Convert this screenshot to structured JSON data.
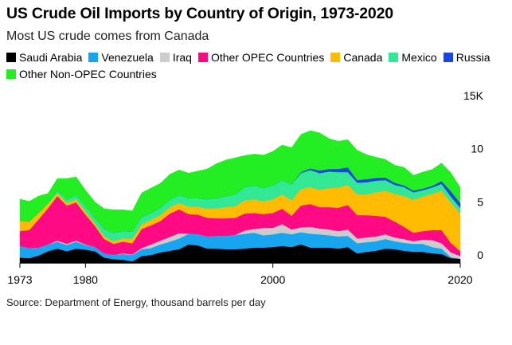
{
  "title": "US Crude Oil Imports by Country of Origin, 1973-2020",
  "subtitle": "Most US crude comes from Canada",
  "source": "Source: Department of Energy, thousand barrels per day",
  "chart_data": {
    "type": "area",
    "stacked": true,
    "x": [
      1973,
      1974,
      1975,
      1976,
      1977,
      1978,
      1979,
      1980,
      1981,
      1982,
      1983,
      1984,
      1985,
      1986,
      1987,
      1988,
      1989,
      1990,
      1991,
      1992,
      1993,
      1994,
      1995,
      1996,
      1997,
      1998,
      1999,
      2000,
      2001,
      2002,
      2003,
      2004,
      2005,
      2006,
      2007,
      2008,
      2009,
      2010,
      2011,
      2012,
      2013,
      2014,
      2015,
      2016,
      2017,
      2018,
      2019,
      2020
    ],
    "x_ticks": [
      "1973",
      "1980",
      "2000",
      "2020"
    ],
    "y_ticks": [
      "0",
      "5",
      "10",
      "15K"
    ],
    "ylim": [
      0,
      15000
    ],
    "series": [
      {
        "name": "Saudi Arabia",
        "color": "#000000",
        "values": [
          500,
          450,
          700,
          1100,
          1350,
          1100,
          1350,
          1250,
          1100,
          500,
          350,
          300,
          150,
          650,
          750,
          1000,
          1150,
          1300,
          1750,
          1650,
          1350,
          1350,
          1300,
          1300,
          1350,
          1450,
          1450,
          1500,
          1600,
          1500,
          1750,
          1450,
          1450,
          1450,
          1350,
          1500,
          900,
          1050,
          1150,
          1350,
          1300,
          1150,
          1050,
          1050,
          900,
          850,
          450,
          400
        ]
      },
      {
        "name": "Venezuela",
        "color": "#17a5f0",
        "values": [
          1100,
          950,
          750,
          650,
          650,
          600,
          650,
          450,
          400,
          400,
          400,
          550,
          600,
          650,
          650,
          750,
          850,
          1000,
          1000,
          1050,
          1150,
          1200,
          1250,
          1350,
          1400,
          1400,
          1150,
          1200,
          1250,
          1200,
          1150,
          1300,
          1250,
          1150,
          1150,
          1050,
          950,
          900,
          900,
          900,
          750,
          750,
          750,
          750,
          600,
          500,
          100,
          0
        ]
      },
      {
        "name": "Iraq",
        "color": "#cccccc",
        "values": [
          0,
          0,
          0,
          0,
          100,
          100,
          100,
          50,
          0,
          0,
          0,
          50,
          50,
          100,
          350,
          350,
          450,
          500,
          0,
          0,
          0,
          0,
          0,
          0,
          300,
          350,
          700,
          600,
          800,
          450,
          450,
          650,
          550,
          550,
          500,
          600,
          450,
          450,
          450,
          450,
          350,
          350,
          250,
          400,
          650,
          500,
          450,
          250
        ]
      },
      {
        "name": "Other OPEC Countries",
        "color": "#ff0a85",
        "values": [
          1400,
          1700,
          2650,
          3400,
          4200,
          3600,
          3600,
          2800,
          2000,
          1350,
          1050,
          1100,
          1050,
          1800,
          1800,
          1850,
          2200,
          2250,
          1850,
          1850,
          1750,
          1650,
          1650,
          1600,
          1600,
          1500,
          1300,
          1400,
          1450,
          1300,
          2050,
          2150,
          2000,
          2100,
          2200,
          2300,
          2200,
          2100,
          1950,
          1650,
          1500,
          1150,
          800,
          800,
          950,
          1250,
          900,
          450
        ]
      },
      {
        "name": "Canada",
        "color": "#ffbb00",
        "values": [
          1000,
          800,
          600,
          400,
          300,
          250,
          300,
          300,
          250,
          250,
          250,
          300,
          400,
          450,
          500,
          550,
          600,
          600,
          700,
          750,
          850,
          950,
          1050,
          1100,
          1250,
          1300,
          1200,
          1300,
          1350,
          1450,
          1550,
          1600,
          1650,
          1800,
          1900,
          1900,
          1950,
          1950,
          2200,
          2450,
          2600,
          2900,
          3100,
          3250,
          3400,
          3700,
          3800,
          3550
        ]
      },
      {
        "name": "Mexico",
        "color": "#32e895",
        "values": [
          0,
          0,
          50,
          100,
          200,
          300,
          400,
          500,
          500,
          700,
          800,
          700,
          700,
          700,
          650,
          700,
          700,
          750,
          800,
          800,
          900,
          950,
          1050,
          1100,
          1250,
          1300,
          1250,
          1300,
          1350,
          1500,
          1500,
          1600,
          1550,
          1550,
          1450,
          1200,
          1100,
          1150,
          1100,
          1000,
          850,
          850,
          700,
          600,
          600,
          650,
          550,
          550
        ]
      },
      {
        "name": "Russia",
        "color": "#1a45e6",
        "values": [
          0,
          0,
          0,
          0,
          0,
          0,
          0,
          0,
          0,
          0,
          0,
          0,
          0,
          0,
          0,
          0,
          0,
          0,
          0,
          0,
          0,
          0,
          0,
          0,
          0,
          0,
          0,
          0,
          0,
          0,
          100,
          150,
          250,
          250,
          300,
          450,
          250,
          300,
          250,
          250,
          200,
          150,
          150,
          150,
          150,
          250,
          500,
          450
        ]
      },
      {
        "name": "Other Non-OPEC Countries",
        "color": "#22ee22",
        "values": [
          2000,
          1900,
          1550,
          900,
          1150,
          2000,
          1700,
          1500,
          1500,
          1900,
          2150,
          2000,
          1950,
          2250,
          2350,
          2300,
          2400,
          2350,
          2350,
          2550,
          2850,
          3250,
          3400,
          3450,
          2950,
          2950,
          3100,
          3200,
          3300,
          3450,
          3550,
          3550,
          3550,
          2850,
          2600,
          2600,
          2800,
          2300,
          1950,
          1700,
          1650,
          1700,
          1450,
          1550,
          1550,
          1700,
          1750,
          1450
        ]
      }
    ]
  }
}
